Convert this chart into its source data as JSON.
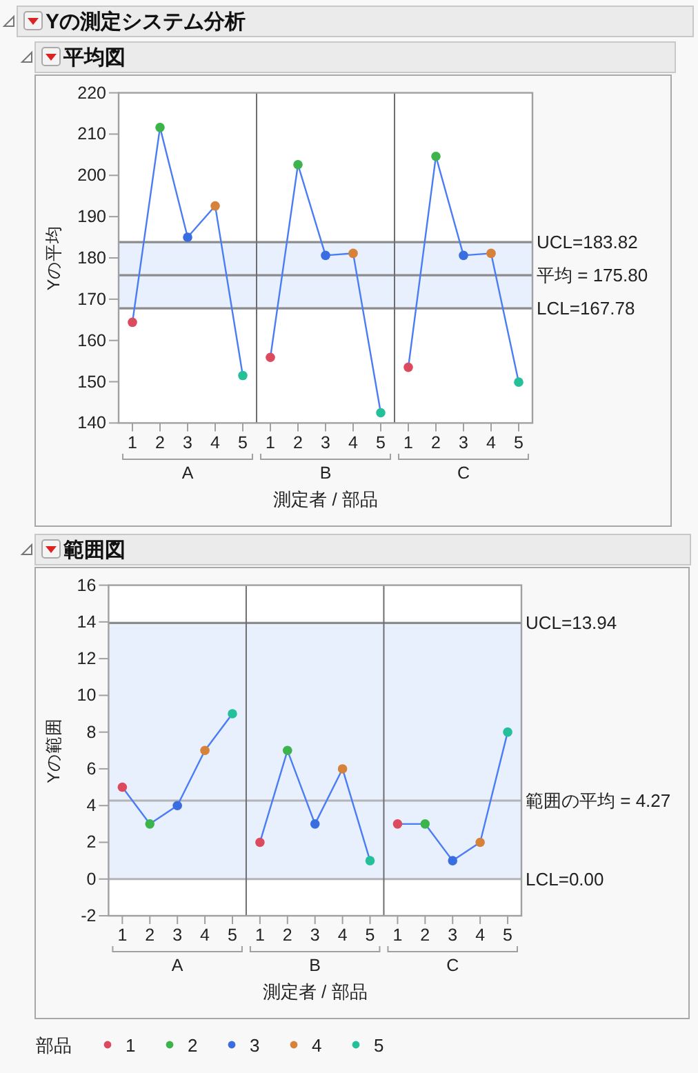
{
  "chart_data": [
    {
      "type": "line",
      "title": "Yの測定システム分析",
      "subtitle": "平均図",
      "xlabel": "測定者 / 部品",
      "ylabel": "Yの平均",
      "categories": [
        "1",
        "2",
        "3",
        "4",
        "5",
        "1",
        "2",
        "3",
        "4",
        "5",
        "1",
        "2",
        "3",
        "4",
        "5"
      ],
      "annotations": [
        "A",
        "B",
        "C"
      ],
      "series": [
        {
          "color": "#4a7cf5",
          "marker": "none",
          "values": [
            164.4,
            211.6,
            185.0,
            192.6,
            151.5,
            null,
            null,
            null,
            null,
            null,
            null,
            null,
            null,
            null,
            null
          ]
        },
        {
          "color": "#4a7cf5",
          "marker": "none",
          "values": [
            null,
            null,
            null,
            null,
            null,
            155.9,
            202.6,
            180.6,
            181.1,
            142.5,
            null,
            null,
            null,
            null,
            null
          ]
        },
        {
          "color": "#4a7cf5",
          "marker": "none",
          "values": [
            null,
            null,
            null,
            null,
            null,
            null,
            null,
            null,
            null,
            null,
            153.5,
            204.6,
            180.6,
            181.1,
            149.9
          ]
        },
        {
          "type": "scatter",
          "color": "#dc4a5e",
          "values": [
            164.4,
            null,
            null,
            null,
            null,
            155.9,
            null,
            null,
            null,
            null,
            153.5,
            null,
            null,
            null,
            null
          ]
        },
        {
          "type": "scatter",
          "color": "#3cb44b",
          "values": [
            null,
            211.6,
            null,
            null,
            null,
            null,
            202.6,
            null,
            null,
            null,
            null,
            204.6,
            null,
            null,
            null
          ]
        },
        {
          "type": "scatter",
          "color": "#3a6de0",
          "values": [
            null,
            null,
            185.0,
            null,
            null,
            null,
            null,
            180.6,
            null,
            null,
            null,
            null,
            180.6,
            null,
            null
          ]
        },
        {
          "type": "scatter",
          "color": "#d6823a",
          "values": [
            null,
            null,
            null,
            192.6,
            null,
            null,
            null,
            null,
            181.1,
            null,
            null,
            null,
            null,
            181.1,
            null
          ]
        },
        {
          "type": "scatter",
          "color": "#24c09a",
          "values": [
            null,
            null,
            null,
            null,
            151.5,
            null,
            null,
            null,
            null,
            142.5,
            null,
            null,
            null,
            null,
            149.9
          ]
        }
      ],
      "ylim": [
        140,
        220
      ],
      "yticks": [
        140,
        150,
        160,
        170,
        180,
        190,
        200,
        210,
        220
      ],
      "marker": "circle",
      "ref_lines": [
        {
          "axis": "y",
          "value": 183.82,
          "label": "UCL=183.82",
          "color": "#8c8c8c"
        },
        {
          "axis": "y",
          "value": 175.8,
          "label": "平均 = 175.80",
          "color": "#8c8c8c"
        },
        {
          "axis": "y",
          "value": 167.78,
          "label": "LCL=167.78",
          "color": "#8c8c8c"
        }
      ],
      "bands": [
        {
          "axis": "y",
          "from": 167.78,
          "to": 183.82,
          "color": "#e8effd"
        }
      ]
    },
    {
      "type": "line",
      "title": "範囲図",
      "xlabel": "測定者 / 部品",
      "ylabel": "Yの範囲",
      "categories": [
        "1",
        "2",
        "3",
        "4",
        "5",
        "1",
        "2",
        "3",
        "4",
        "5",
        "1",
        "2",
        "3",
        "4",
        "5"
      ],
      "annotations": [
        "A",
        "B",
        "C"
      ],
      "series": [
        {
          "color": "#4a7cf5",
          "marker": "none",
          "values": [
            5,
            3,
            4,
            7,
            9,
            null,
            null,
            null,
            null,
            null,
            null,
            null,
            null,
            null,
            null
          ]
        },
        {
          "color": "#4a7cf5",
          "marker": "none",
          "values": [
            null,
            null,
            null,
            null,
            null,
            2,
            7,
            3,
            6,
            1,
            null,
            null,
            null,
            null,
            null
          ]
        },
        {
          "color": "#4a7cf5",
          "marker": "none",
          "values": [
            null,
            null,
            null,
            null,
            null,
            null,
            null,
            null,
            null,
            null,
            3,
            3,
            1,
            2,
            8
          ]
        },
        {
          "name": "1",
          "type": "scatter",
          "color": "#dc4a5e",
          "values": [
            5,
            null,
            null,
            null,
            null,
            2,
            null,
            null,
            null,
            null,
            3,
            null,
            null,
            null,
            null
          ]
        },
        {
          "name": "2",
          "type": "scatter",
          "color": "#3cb44b",
          "values": [
            null,
            3,
            null,
            null,
            null,
            null,
            7,
            null,
            null,
            null,
            null,
            3,
            null,
            null,
            null
          ]
        },
        {
          "name": "3",
          "type": "scatter",
          "color": "#3a6de0",
          "values": [
            null,
            null,
            4,
            null,
            null,
            null,
            null,
            3,
            null,
            null,
            null,
            null,
            1,
            null,
            null
          ]
        },
        {
          "name": "4",
          "type": "scatter",
          "color": "#d6823a",
          "values": [
            null,
            null,
            null,
            7,
            null,
            null,
            null,
            null,
            6,
            null,
            null,
            null,
            null,
            2,
            null
          ]
        },
        {
          "name": "5",
          "type": "scatter",
          "color": "#24c09a",
          "values": [
            null,
            null,
            null,
            null,
            9,
            null,
            null,
            null,
            null,
            1,
            null,
            null,
            null,
            null,
            8
          ]
        }
      ],
      "ylim": [
        -2,
        16
      ],
      "yticks": [
        -2,
        0,
        2,
        4,
        6,
        8,
        10,
        12,
        14,
        16
      ],
      "marker": "circle",
      "ref_lines": [
        {
          "axis": "y",
          "value": 13.94,
          "label": "UCL=13.94",
          "color": "#8c8c8c"
        },
        {
          "axis": "y",
          "value": 4.27,
          "label": "範囲の平均 = 4.27",
          "color": "#b4b4b4"
        },
        {
          "axis": "y",
          "value": 0,
          "label": "LCL=0.00",
          "color": "#b4b4b4"
        }
      ],
      "bands": [
        {
          "axis": "y",
          "from": 0,
          "to": 13.94,
          "color": "#e8effd"
        }
      ],
      "legend": "bottom",
      "legend_title": "部品"
    }
  ]
}
